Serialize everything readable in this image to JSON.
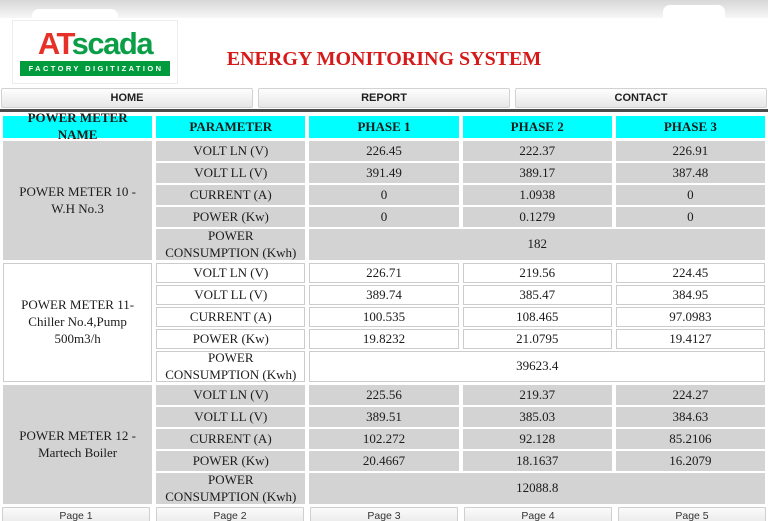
{
  "logo": {
    "brand_red": "AT",
    "brand_green": "scada",
    "tagline": "FACTORY DIGITIZATION"
  },
  "title": "ENERGY MONITORING SYSTEM",
  "nav": {
    "home": "HOME",
    "report": "REPORT",
    "contact": "CONTACT"
  },
  "table": {
    "headers": [
      "POWER METER NAME",
      "PARAMETER",
      "PHASE 1",
      "PHASE 2",
      "PHASE 3"
    ],
    "sections": [
      {
        "name": "POWER METER 10 - W.H No.3",
        "rows": [
          {
            "param": "VOLT LN (V)",
            "values": [
              "226.45",
              "222.37",
              "226.91"
            ]
          },
          {
            "param": "VOLT LL (V)",
            "values": [
              "391.49",
              "389.17",
              "387.48"
            ]
          },
          {
            "param": "CURRENT (A)",
            "values": [
              "0",
              "1.0938",
              "0"
            ]
          },
          {
            "param": "POWER (Kw)",
            "values": [
              "0",
              "0.1279",
              "0"
            ]
          }
        ],
        "consumption_label": "POWER CONSUMPTION (Kwh)",
        "consumption_value": "182"
      },
      {
        "name": "POWER METER 11- Chiller No.4,Pump 500m3/h",
        "rows": [
          {
            "param": "VOLT LN (V)",
            "values": [
              "226.71",
              "219.56",
              "224.45"
            ]
          },
          {
            "param": "VOLT LL (V)",
            "values": [
              "389.74",
              "385.47",
              "384.95"
            ]
          },
          {
            "param": "CURRENT (A)",
            "values": [
              "100.535",
              "108.465",
              "97.0983"
            ]
          },
          {
            "param": "POWER (Kw)",
            "values": [
              "19.8232",
              "21.0795",
              "19.4127"
            ]
          }
        ],
        "consumption_label": "POWER CONSUMPTION (Kwh)",
        "consumption_value": "39623.4"
      },
      {
        "name": "POWER METER 12 - Martech Boiler",
        "rows": [
          {
            "param": "VOLT LN (V)",
            "values": [
              "225.56",
              "219.37",
              "224.27"
            ]
          },
          {
            "param": "VOLT LL (V)",
            "values": [
              "389.51",
              "385.03",
              "384.63"
            ]
          },
          {
            "param": "CURRENT (A)",
            "values": [
              "102.272",
              "92.128",
              "85.2106"
            ]
          },
          {
            "param": "POWER (Kw)",
            "values": [
              "20.4667",
              "18.1637",
              "16.2079"
            ]
          }
        ],
        "consumption_label": "POWER CONSUMPTION (Kwh)",
        "consumption_value": "12088.8"
      }
    ]
  },
  "pager": {
    "page1": "Page 1",
    "page2": "Page 2",
    "page3": "Page 3",
    "page4": "Page 4",
    "page5": "Page 5"
  },
  "colors": {
    "header_bg": "#00ffff",
    "section_gray": "#d3d3d3",
    "title_red": "#d61a1a",
    "brand_red": "#e63128",
    "brand_green": "#009b3d"
  }
}
